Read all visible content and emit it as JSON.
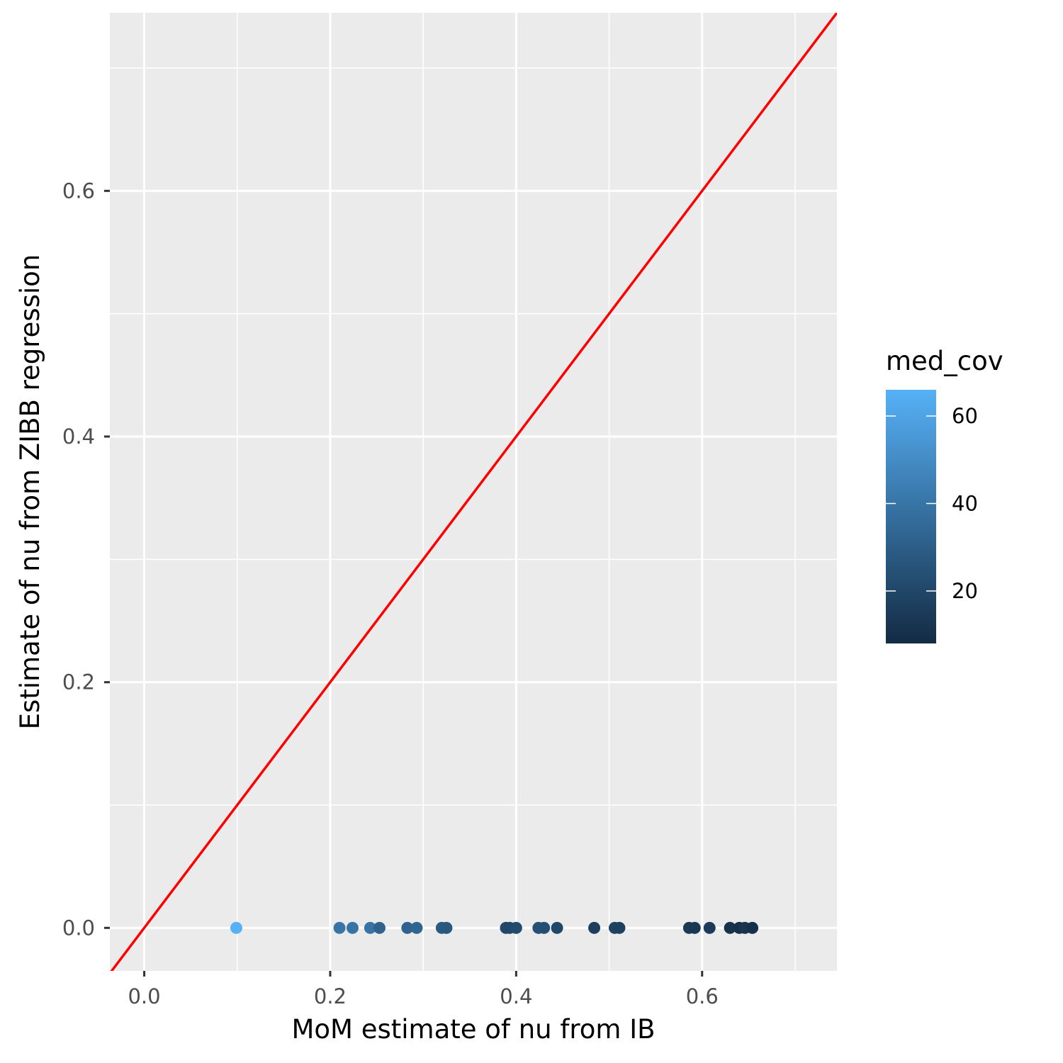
{
  "chart_data": {
    "type": "scatter",
    "title": "",
    "xlabel": "MoM estimate of nu from IB",
    "ylabel": "Estimate of nu from ZIBB regression",
    "xlim": [
      -0.037,
      0.745
    ],
    "ylim": [
      -0.035,
      0.745
    ],
    "x_ticks": [
      0.0,
      0.2,
      0.4,
      0.6
    ],
    "x_tick_labels": [
      "0.0",
      "0.2",
      "0.4",
      "0.6"
    ],
    "y_ticks": [
      0.0,
      0.2,
      0.4,
      0.6
    ],
    "y_tick_labels": [
      "0.0",
      "0.2",
      "0.4",
      "0.6"
    ],
    "grid": true,
    "panel_background": "#ebebeb",
    "reference_line": {
      "type": "identity",
      "slope": 1,
      "intercept": 0,
      "color": "#ff0000"
    },
    "color_scale": {
      "variable": "med_cov",
      "title": "med_cov",
      "low_color": "#132b43",
      "high_color": "#56b1f7",
      "domain": [
        8,
        66
      ],
      "breaks": [
        20,
        40,
        60
      ],
      "break_labels": [
        "20",
        "40",
        "60"
      ],
      "legend_position": "right"
    },
    "points": [
      {
        "x": 0.099,
        "y": 0.0,
        "med_cov": 66
      },
      {
        "x": 0.21,
        "y": 0.0,
        "med_cov": 40
      },
      {
        "x": 0.224,
        "y": 0.0,
        "med_cov": 39
      },
      {
        "x": 0.243,
        "y": 0.0,
        "med_cov": 39
      },
      {
        "x": 0.253,
        "y": 0.0,
        "med_cov": 32
      },
      {
        "x": 0.283,
        "y": 0.0,
        "med_cov": 32
      },
      {
        "x": 0.293,
        "y": 0.0,
        "med_cov": 33
      },
      {
        "x": 0.32,
        "y": 0.0,
        "med_cov": 28
      },
      {
        "x": 0.325,
        "y": 0.0,
        "med_cov": 27
      },
      {
        "x": 0.389,
        "y": 0.0,
        "med_cov": 21
      },
      {
        "x": 0.393,
        "y": 0.0,
        "med_cov": 20
      },
      {
        "x": 0.4,
        "y": 0.0,
        "med_cov": 22
      },
      {
        "x": 0.424,
        "y": 0.0,
        "med_cov": 24
      },
      {
        "x": 0.43,
        "y": 0.0,
        "med_cov": 23
      },
      {
        "x": 0.444,
        "y": 0.0,
        "med_cov": 20
      },
      {
        "x": 0.484,
        "y": 0.0,
        "med_cov": 16
      },
      {
        "x": 0.506,
        "y": 0.0,
        "med_cov": 18
      },
      {
        "x": 0.511,
        "y": 0.0,
        "med_cov": 17
      },
      {
        "x": 0.586,
        "y": 0.0,
        "med_cov": 14
      },
      {
        "x": 0.592,
        "y": 0.0,
        "med_cov": 13
      },
      {
        "x": 0.608,
        "y": 0.0,
        "med_cov": 15
      },
      {
        "x": 0.63,
        "y": 0.0,
        "med_cov": 11
      },
      {
        "x": 0.64,
        "y": 0.0,
        "med_cov": 10
      },
      {
        "x": 0.646,
        "y": 0.0,
        "med_cov": 12
      },
      {
        "x": 0.654,
        "y": 0.0,
        "med_cov": 10
      }
    ]
  }
}
